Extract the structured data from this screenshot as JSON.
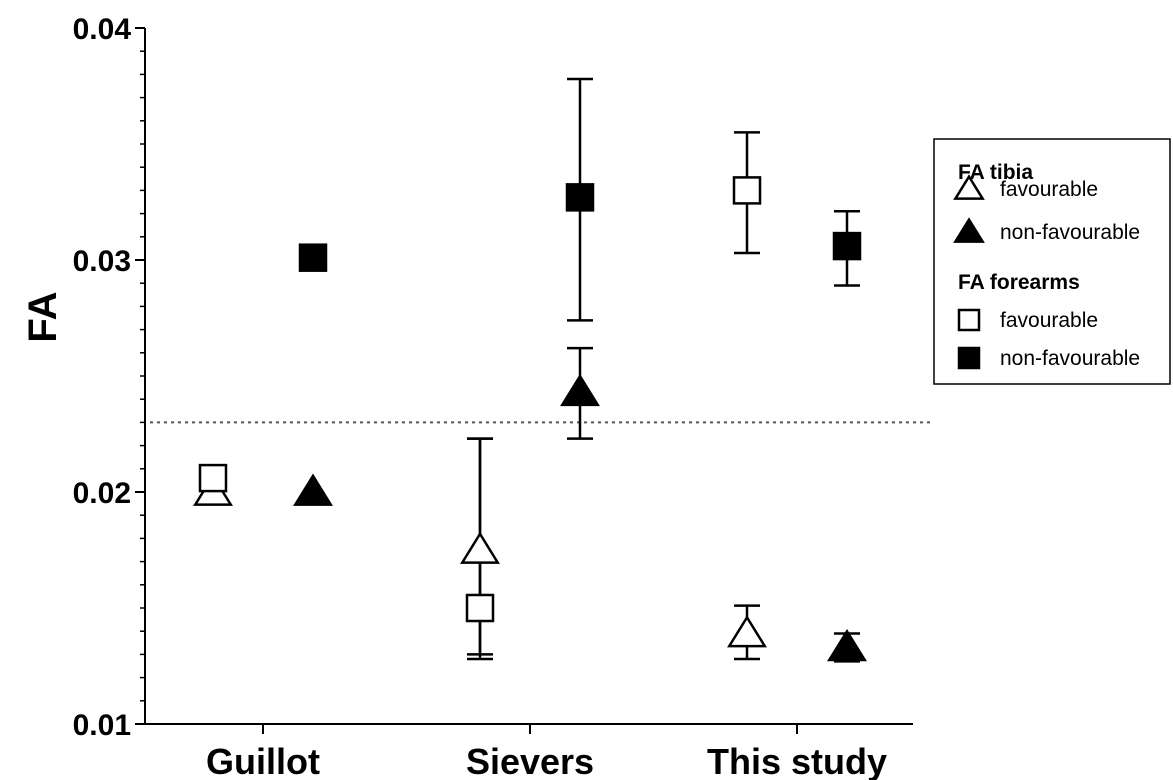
{
  "chart_data": {
    "type": "scatter",
    "ylabel": "FA",
    "ylim": [
      0.01,
      0.04
    ],
    "yticks": [
      {
        "value": 0.01,
        "label": "0.01"
      },
      {
        "value": 0.02,
        "label": "0.02"
      },
      {
        "value": 0.03,
        "label": "0.03"
      },
      {
        "value": 0.04,
        "label": "0.04"
      }
    ],
    "categories": [
      "Guillot",
      "Sievers",
      "This study"
    ],
    "reference_line": {
      "value": 0.023,
      "style": "dotted"
    },
    "legend": {
      "placement": "right",
      "groups": [
        {
          "title": "FA tibia",
          "items": [
            "favourable",
            "non-favourable"
          ]
        },
        {
          "title": "FA forearms",
          "items": [
            "favourable",
            "non-favourable"
          ]
        }
      ]
    },
    "series": [
      {
        "group": "FA tibia",
        "condition": "favourable",
        "marker": "triangle",
        "filled": false,
        "color": "#000000",
        "points": [
          {
            "category": "Guillot",
            "y": 0.02,
            "err_low": null,
            "err_high": null
          },
          {
            "category": "Sievers",
            "y": 0.0175,
            "err_low": 0.013,
            "err_high": 0.0223
          },
          {
            "category": "This study",
            "y": 0.0139,
            "err_low": 0.0128,
            "err_high": 0.0151
          }
        ]
      },
      {
        "group": "FA tibia",
        "condition": "non-favourable",
        "marker": "triangle",
        "filled": true,
        "color": "#000000",
        "points": [
          {
            "category": "Guillot",
            "y": 0.02,
            "err_low": null,
            "err_high": null
          },
          {
            "category": "Sievers",
            "y": 0.0243,
            "err_low": 0.0223,
            "err_high": 0.0262
          },
          {
            "category": "This study",
            "y": 0.0133,
            "err_low": 0.0127,
            "err_high": 0.0139
          }
        ]
      },
      {
        "group": "FA forearms",
        "condition": "favourable",
        "marker": "square",
        "filled": false,
        "color": "#000000",
        "points": [
          {
            "category": "Guillot",
            "y": 0.0206,
            "err_low": null,
            "err_high": null
          },
          {
            "category": "Sievers",
            "y": 0.015,
            "err_low": 0.0128,
            "err_high": 0.0223
          },
          {
            "category": "This study",
            "y": 0.033,
            "err_low": 0.0303,
            "err_high": 0.0355
          }
        ]
      },
      {
        "group": "FA forearms",
        "condition": "non-favourable",
        "marker": "square",
        "filled": true,
        "color": "#000000",
        "points": [
          {
            "category": "Guillot",
            "y": 0.0301,
            "err_low": null,
            "err_high": null
          },
          {
            "category": "Sievers",
            "y": 0.0327,
            "err_low": 0.0274,
            "err_high": 0.0378
          },
          {
            "category": "This study",
            "y": 0.0306,
            "err_low": 0.0289,
            "err_high": 0.0321
          }
        ]
      }
    ]
  }
}
